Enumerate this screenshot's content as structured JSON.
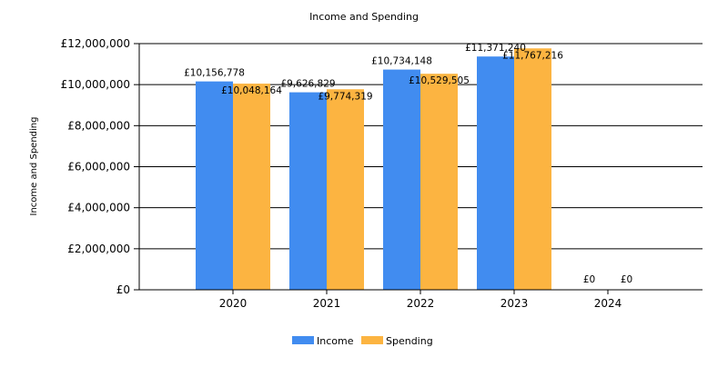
{
  "chart_data": {
    "type": "bar",
    "title": "Income and Spending",
    "xlabel": "",
    "ylabel": "Income and Spending",
    "categories": [
      "2020",
      "2021",
      "2022",
      "2023",
      "2024"
    ],
    "series": [
      {
        "name": "Income",
        "color": "#418CF0",
        "values": [
          10156778,
          9626829,
          10734148,
          11371240,
          0
        ],
        "labels": [
          "£10,156,778",
          "£9,626,829",
          "£10,734,148",
          "£11,371,240",
          "£0"
        ]
      },
      {
        "name": "Spending",
        "color": "#FCB441",
        "values": [
          10048164,
          9774319,
          10529505,
          11767216,
          0
        ],
        "labels": [
          "£10,048,164",
          "£9,774,319",
          "£10,529,505",
          "£11,767,216",
          "£0"
        ]
      }
    ],
    "ylim": [
      0,
      12000000
    ],
    "yticks": [
      0,
      2000000,
      4000000,
      6000000,
      8000000,
      10000000,
      12000000
    ],
    "ytick_labels": [
      "£0",
      "£2,000,000",
      "£4,000,000",
      "£6,000,000",
      "£8,000,000",
      "£10,000,000",
      "£12,000,000"
    ],
    "grid": true,
    "legend_position": "bottom-center"
  }
}
